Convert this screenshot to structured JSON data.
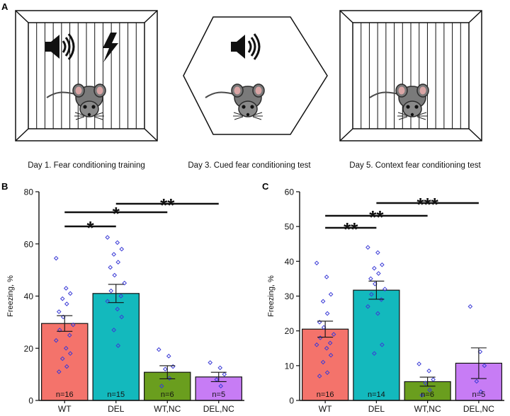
{
  "panels": {
    "a_label": "A",
    "b_label": "B",
    "c_label": "C"
  },
  "schematic": {
    "day1_caption": "Day 1. Fear conditioning training",
    "day3_caption": "Day 3. Cued fear conditioning test",
    "day5_caption": "Day 5. Context fear conditioning test",
    "icons": [
      "speaker-icon",
      "lightning-icon",
      "mouse-icon",
      "cage-grid",
      "hexagon-chamber"
    ]
  },
  "colors": {
    "WT": "#f4736b",
    "DEL": "#13b9bd",
    "WT,NC": "#6a9e1e",
    "DEL,NC": "#c77cf5",
    "points": "#3b3bd6"
  },
  "chart_data": [
    {
      "type": "bar",
      "panel": "B",
      "title": "",
      "xlabel": "",
      "ylabel": "Freezing, %",
      "ylim": [
        0,
        80
      ],
      "yticks": [
        0,
        20,
        40,
        60,
        80
      ],
      "categories": [
        "WT",
        "DEL",
        "WT,NC",
        "DEL,NC"
      ],
      "values": [
        29.5,
        41,
        10.8,
        9
      ],
      "sem": [
        3.0,
        3.5,
        2.5,
        1.8
      ],
      "n_labels": [
        "n=16",
        "n=15",
        "n=6",
        "n=5"
      ],
      "points": [
        [
          54.5,
          43,
          41,
          39,
          37,
          34,
          32,
          29,
          27,
          25,
          23,
          20,
          18,
          16,
          13,
          11
        ],
        [
          62.5,
          60.5,
          58,
          56,
          53,
          51,
          48,
          45,
          42,
          40,
          38,
          35,
          32,
          27,
          21
        ],
        [
          19.5,
          17,
          13,
          12,
          8.5,
          5.5
        ],
        [
          14.5,
          12.5,
          10,
          8,
          5.5
        ]
      ],
      "significance": [
        {
          "from": "WT",
          "to": "DEL",
          "label": "*"
        },
        {
          "from": "WT",
          "to": "WT,NC",
          "label": "*"
        },
        {
          "from": "DEL",
          "to": "DEL,NC",
          "label": "**"
        }
      ]
    },
    {
      "type": "bar",
      "panel": "C",
      "title": "",
      "xlabel": "",
      "ylabel": "Freezing, %",
      "ylim": [
        0,
        60
      ],
      "yticks": [
        0,
        10,
        20,
        30,
        40,
        50,
        60
      ],
      "categories": [
        "WT",
        "DEL",
        "WT,NC",
        "DEL,NC"
      ],
      "values": [
        20.5,
        31.7,
        5.4,
        10.7
      ],
      "sem": [
        2.3,
        2.6,
        1.3,
        4.4
      ],
      "n_labels": [
        "n=16",
        "n=14",
        "n=6",
        "n=5"
      ],
      "points": [
        [
          39.5,
          35.5,
          30.5,
          28.5,
          25,
          22.5,
          21,
          19,
          18,
          16.5,
          16,
          15,
          13,
          11,
          8,
          7
        ],
        [
          44,
          42.5,
          39,
          38,
          36.5,
          35,
          33.5,
          32,
          30.5,
          29,
          27,
          25,
          16,
          13.5
        ],
        [
          10.5,
          8.5,
          6,
          5,
          3,
          1.5
        ],
        [
          27,
          14,
          10,
          5.5,
          2.5
        ]
      ],
      "significance": [
        {
          "from": "WT",
          "to": "DEL",
          "label": "**"
        },
        {
          "from": "WT",
          "to": "WT,NC",
          "label": "**"
        },
        {
          "from": "DEL",
          "to": "DEL,NC",
          "label": "***"
        }
      ]
    }
  ]
}
